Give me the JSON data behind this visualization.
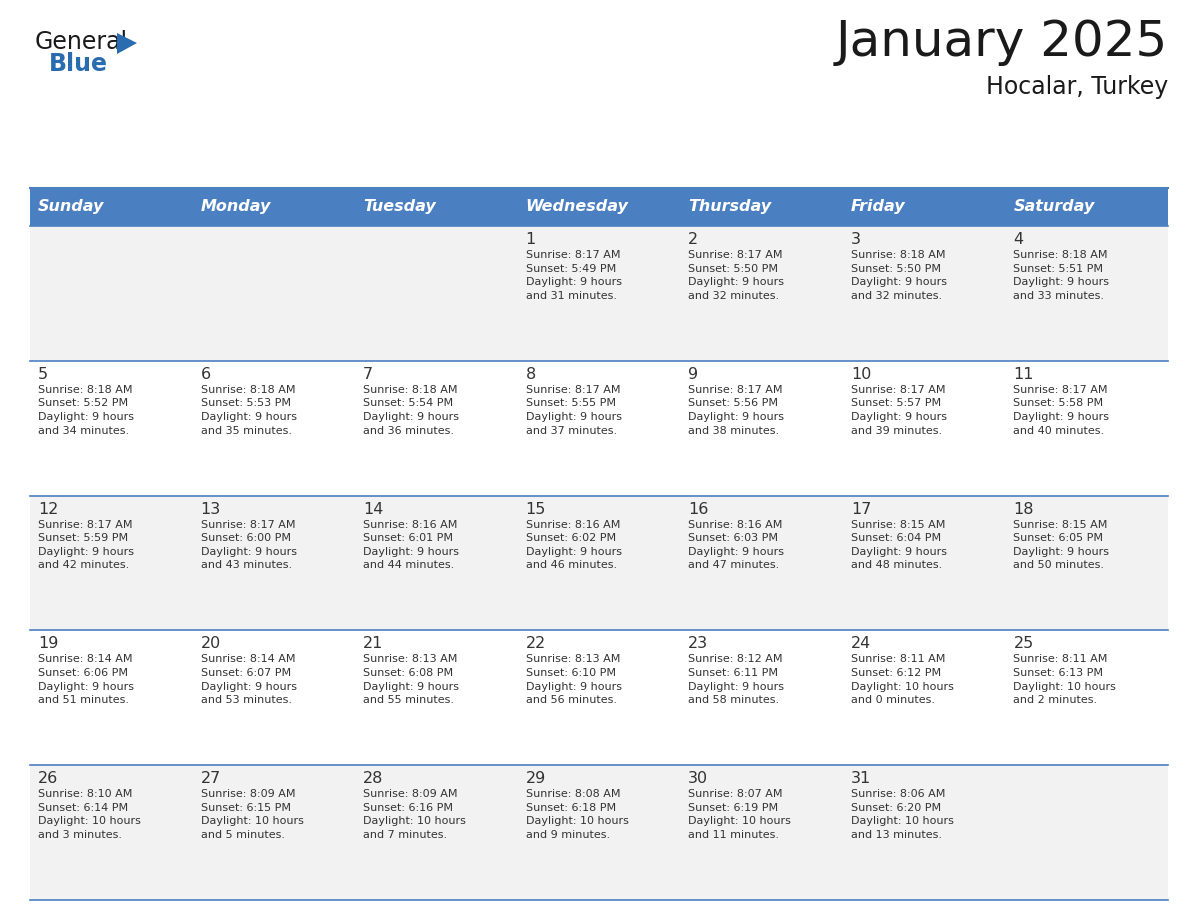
{
  "title": "January 2025",
  "subtitle": "Hocalar, Turkey",
  "days_of_week": [
    "Sunday",
    "Monday",
    "Tuesday",
    "Wednesday",
    "Thursday",
    "Friday",
    "Saturday"
  ],
  "header_bg": "#4a7fc1",
  "header_text": "#FFFFFF",
  "cell_bg_odd": "#F2F2F2",
  "cell_bg_even": "#FFFFFF",
  "row_line_color": "#4a7fc1",
  "text_color": "#333333",
  "logo_general_color": "#1a1a1a",
  "logo_blue_color": "#2a6cb0",
  "logo_triangle_color": "#2a6cb0",
  "title_color": "#1a1a1a",
  "calendar_data": [
    [
      {
        "day": "",
        "info": ""
      },
      {
        "day": "",
        "info": ""
      },
      {
        "day": "",
        "info": ""
      },
      {
        "day": "1",
        "info": "Sunrise: 8:17 AM\nSunset: 5:49 PM\nDaylight: 9 hours\nand 31 minutes."
      },
      {
        "day": "2",
        "info": "Sunrise: 8:17 AM\nSunset: 5:50 PM\nDaylight: 9 hours\nand 32 minutes."
      },
      {
        "day": "3",
        "info": "Sunrise: 8:18 AM\nSunset: 5:50 PM\nDaylight: 9 hours\nand 32 minutes."
      },
      {
        "day": "4",
        "info": "Sunrise: 8:18 AM\nSunset: 5:51 PM\nDaylight: 9 hours\nand 33 minutes."
      }
    ],
    [
      {
        "day": "5",
        "info": "Sunrise: 8:18 AM\nSunset: 5:52 PM\nDaylight: 9 hours\nand 34 minutes."
      },
      {
        "day": "6",
        "info": "Sunrise: 8:18 AM\nSunset: 5:53 PM\nDaylight: 9 hours\nand 35 minutes."
      },
      {
        "day": "7",
        "info": "Sunrise: 8:18 AM\nSunset: 5:54 PM\nDaylight: 9 hours\nand 36 minutes."
      },
      {
        "day": "8",
        "info": "Sunrise: 8:17 AM\nSunset: 5:55 PM\nDaylight: 9 hours\nand 37 minutes."
      },
      {
        "day": "9",
        "info": "Sunrise: 8:17 AM\nSunset: 5:56 PM\nDaylight: 9 hours\nand 38 minutes."
      },
      {
        "day": "10",
        "info": "Sunrise: 8:17 AM\nSunset: 5:57 PM\nDaylight: 9 hours\nand 39 minutes."
      },
      {
        "day": "11",
        "info": "Sunrise: 8:17 AM\nSunset: 5:58 PM\nDaylight: 9 hours\nand 40 minutes."
      }
    ],
    [
      {
        "day": "12",
        "info": "Sunrise: 8:17 AM\nSunset: 5:59 PM\nDaylight: 9 hours\nand 42 minutes."
      },
      {
        "day": "13",
        "info": "Sunrise: 8:17 AM\nSunset: 6:00 PM\nDaylight: 9 hours\nand 43 minutes."
      },
      {
        "day": "14",
        "info": "Sunrise: 8:16 AM\nSunset: 6:01 PM\nDaylight: 9 hours\nand 44 minutes."
      },
      {
        "day": "15",
        "info": "Sunrise: 8:16 AM\nSunset: 6:02 PM\nDaylight: 9 hours\nand 46 minutes."
      },
      {
        "day": "16",
        "info": "Sunrise: 8:16 AM\nSunset: 6:03 PM\nDaylight: 9 hours\nand 47 minutes."
      },
      {
        "day": "17",
        "info": "Sunrise: 8:15 AM\nSunset: 6:04 PM\nDaylight: 9 hours\nand 48 minutes."
      },
      {
        "day": "18",
        "info": "Sunrise: 8:15 AM\nSunset: 6:05 PM\nDaylight: 9 hours\nand 50 minutes."
      }
    ],
    [
      {
        "day": "19",
        "info": "Sunrise: 8:14 AM\nSunset: 6:06 PM\nDaylight: 9 hours\nand 51 minutes."
      },
      {
        "day": "20",
        "info": "Sunrise: 8:14 AM\nSunset: 6:07 PM\nDaylight: 9 hours\nand 53 minutes."
      },
      {
        "day": "21",
        "info": "Sunrise: 8:13 AM\nSunset: 6:08 PM\nDaylight: 9 hours\nand 55 minutes."
      },
      {
        "day": "22",
        "info": "Sunrise: 8:13 AM\nSunset: 6:10 PM\nDaylight: 9 hours\nand 56 minutes."
      },
      {
        "day": "23",
        "info": "Sunrise: 8:12 AM\nSunset: 6:11 PM\nDaylight: 9 hours\nand 58 minutes."
      },
      {
        "day": "24",
        "info": "Sunrise: 8:11 AM\nSunset: 6:12 PM\nDaylight: 10 hours\nand 0 minutes."
      },
      {
        "day": "25",
        "info": "Sunrise: 8:11 AM\nSunset: 6:13 PM\nDaylight: 10 hours\nand 2 minutes."
      }
    ],
    [
      {
        "day": "26",
        "info": "Sunrise: 8:10 AM\nSunset: 6:14 PM\nDaylight: 10 hours\nand 3 minutes."
      },
      {
        "day": "27",
        "info": "Sunrise: 8:09 AM\nSunset: 6:15 PM\nDaylight: 10 hours\nand 5 minutes."
      },
      {
        "day": "28",
        "info": "Sunrise: 8:09 AM\nSunset: 6:16 PM\nDaylight: 10 hours\nand 7 minutes."
      },
      {
        "day": "29",
        "info": "Sunrise: 8:08 AM\nSunset: 6:18 PM\nDaylight: 10 hours\nand 9 minutes."
      },
      {
        "day": "30",
        "info": "Sunrise: 8:07 AM\nSunset: 6:19 PM\nDaylight: 10 hours\nand 11 minutes."
      },
      {
        "day": "31",
        "info": "Sunrise: 8:06 AM\nSunset: 6:20 PM\nDaylight: 10 hours\nand 13 minutes."
      },
      {
        "day": "",
        "info": ""
      }
    ]
  ]
}
